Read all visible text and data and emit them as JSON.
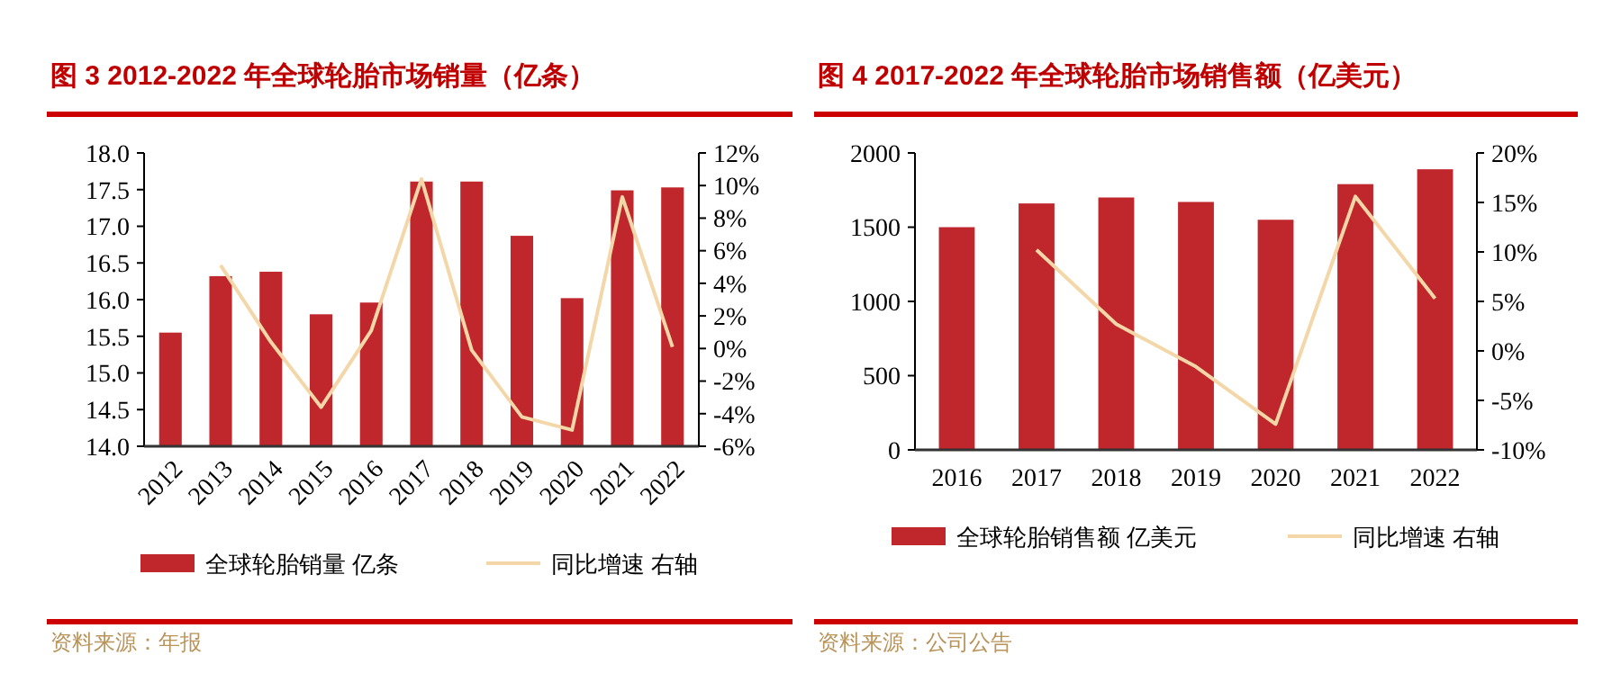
{
  "chart_data": [
    {
      "type": "bar",
      "title": "图 3 2012-2022 年全球轮胎市场销量（亿条）",
      "categories": [
        "2012",
        "2013",
        "2014",
        "2015",
        "2016",
        "2017",
        "2018",
        "2019",
        "2020",
        "2021",
        "2022"
      ],
      "series": [
        {
          "name": "全球轮胎销量 亿条",
          "color": "#c0272d",
          "values": [
            15.55,
            16.32,
            16.38,
            15.8,
            15.96,
            17.61,
            17.61,
            16.87,
            16.02,
            17.49,
            17.53
          ]
        },
        {
          "name": "同比增速 右轴",
          "type": "line",
          "axis": "y2",
          "color": "#f3d7a8",
          "values": [
            null,
            5.1,
            0.4,
            -3.6,
            1.1,
            10.4,
            -0.1,
            -4.2,
            -5.0,
            9.3,
            0.1
          ]
        }
      ],
      "ylim": [
        14,
        18
      ],
      "yticks": [
        {
          "value": 14,
          "label": "14.0"
        },
        {
          "value": 14.5,
          "label": "14.5"
        },
        {
          "value": 15,
          "label": "15.0"
        },
        {
          "value": 15.5,
          "label": "15.5"
        },
        {
          "value": 16,
          "label": "16.0"
        },
        {
          "value": 16.5,
          "label": "16.5"
        },
        {
          "value": 17,
          "label": "17.0"
        },
        {
          "value": 17.5,
          "label": "17.5"
        },
        {
          "value": 18,
          "label": "18.0"
        }
      ],
      "y2lim": [
        -6,
        12
      ],
      "y2ticks": [
        {
          "value": -6,
          "label": "-6%"
        },
        {
          "value": -4,
          "label": "-4%"
        },
        {
          "value": -2,
          "label": "-2%"
        },
        {
          "value": 0,
          "label": "0%"
        },
        {
          "value": 2,
          "label": "2%"
        },
        {
          "value": 4,
          "label": "4%"
        },
        {
          "value": 6,
          "label": "6%"
        },
        {
          "value": 8,
          "label": "8%"
        },
        {
          "value": 10,
          "label": "10%"
        },
        {
          "value": 12,
          "label": "12%"
        }
      ],
      "legend": "bottom",
      "annotations": [
        "资料来源：年报"
      ]
    },
    {
      "type": "bar",
      "title": "图 4 2017-2022 年全球轮胎市场销售额（亿美元）",
      "categories": [
        "2016",
        "2017",
        "2018",
        "2019",
        "2020",
        "2021",
        "2022"
      ],
      "series": [
        {
          "name": "全球轮胎销售额 亿美元",
          "color": "#c0272d",
          "values": [
            1500,
            1660,
            1700,
            1670,
            1550,
            1790,
            1890
          ]
        },
        {
          "name": "同比增速 右轴",
          "type": "line",
          "axis": "y2",
          "color": "#f3d7a8",
          "values": [
            null,
            10.2,
            2.7,
            -1.6,
            -7.4,
            15.6,
            5.3
          ]
        }
      ],
      "ylim": [
        0,
        2000
      ],
      "yticks": [
        0,
        500,
        1000,
        1500,
        2000
      ],
      "y2lim": [
        -10,
        20
      ],
      "y2ticks": [
        {
          "value": -10,
          "label": "-10%"
        },
        {
          "value": -5,
          "label": "-5%"
        },
        {
          "value": 0,
          "label": "0%"
        },
        {
          "value": 5,
          "label": "5%"
        },
        {
          "value": 10,
          "label": "10%"
        },
        {
          "value": 15,
          "label": "15%"
        },
        {
          "value": 20,
          "label": "20%"
        }
      ],
      "legend": "bottom",
      "annotations": [
        "资料来源：公司公告"
      ]
    }
  ]
}
